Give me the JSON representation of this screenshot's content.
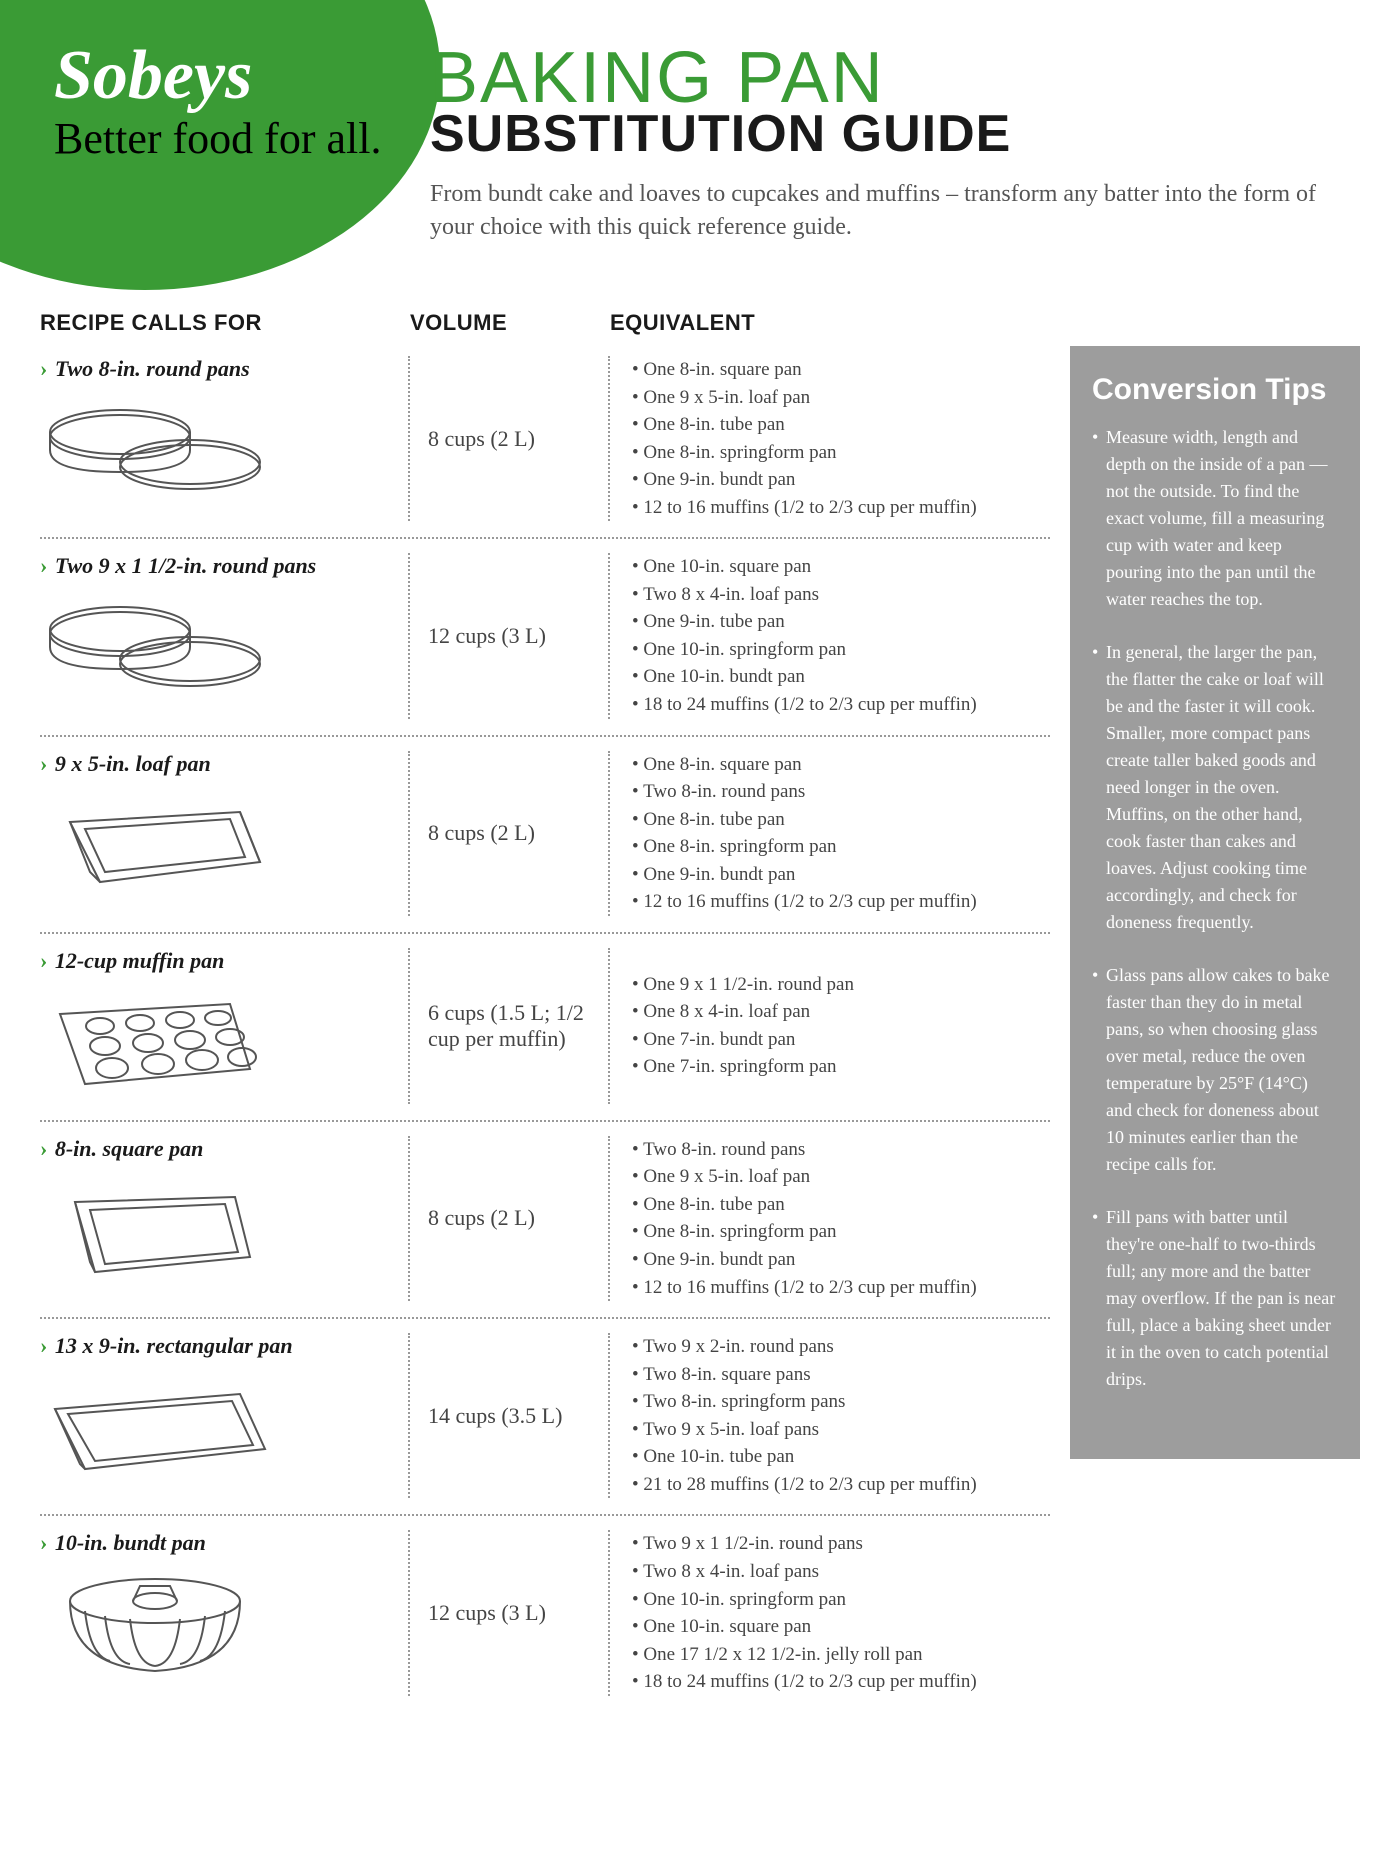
{
  "colors": {
    "brand_green": "#3a9b35",
    "sidebar_gray": "#9d9d9d",
    "text_body": "#444444",
    "text_heading": "#1a1a1a",
    "white": "#ffffff"
  },
  "brand": {
    "logo_text": "Sobeys",
    "tagline": "Better food for all."
  },
  "header": {
    "title_line1": "BAKING PAN",
    "title_line2": "SUBSTITUTION GUIDE",
    "intro": "From bundt cake and loaves to cupcakes and muffins – transform any batter into the form of your choice with this quick reference guide."
  },
  "columns": {
    "c1": "RECIPE CALLS FOR",
    "c2": "VOLUME",
    "c3": "EQUIVALENT"
  },
  "rows": [
    {
      "name": "Two 8-in. round pans",
      "icon": "round-pans",
      "volume": "8 cups (2 L)",
      "equivalents": [
        "One 8-in. square pan",
        "One 9 x 5-in. loaf pan",
        "One 8-in. tube pan",
        "One 8-in. springform pan",
        "One 9-in. bundt pan",
        "12 to 16 muffins (1/2 to 2/3 cup per muffin)"
      ]
    },
    {
      "name": "Two 9 x 1 1/2-in. round pans",
      "icon": "round-pans",
      "volume": "12 cups (3 L)",
      "equivalents": [
        "One 10-in. square pan",
        "Two 8 x 4-in. loaf pans",
        "One 9-in. tube pan",
        "One 10-in. springform pan",
        "One 10-in. bundt pan",
        "18 to 24 muffins (1/2 to 2/3 cup per muffin)"
      ]
    },
    {
      "name": "9 x 5-in. loaf pan",
      "icon": "loaf-pan",
      "volume": "8 cups (2 L)",
      "equivalents": [
        "One 8-in. square pan",
        "Two 8-in. round pans",
        "One 8-in. tube pan",
        "One 8-in. springform pan",
        "One 9-in. bundt pan",
        "12 to 16 muffins (1/2 to 2/3 cup per muffin)"
      ]
    },
    {
      "name": "12-cup muffin pan",
      "icon": "muffin-pan",
      "volume": "6 cups (1.5 L; 1/2 cup per muffin)",
      "equivalents": [
        "One 9 x 1 1/2-in. round pan",
        "One 8 x 4-in. loaf pan",
        "One 7-in. bundt pan",
        "One 7-in. springform pan"
      ]
    },
    {
      "name": "8-in. square pan",
      "icon": "square-pan",
      "volume": "8 cups (2 L)",
      "equivalents": [
        "Two 8-in. round pans",
        "One 9 x 5-in. loaf pan",
        "One 8-in. tube pan",
        "One 8-in. springform pan",
        "One 9-in. bundt pan",
        "12 to 16 muffins (1/2 to 2/3 cup per muffin)"
      ]
    },
    {
      "name": "13 x 9-in. rectangular pan",
      "icon": "rect-pan",
      "volume": "14 cups (3.5 L)",
      "equivalents": [
        "Two 9 x 2-in. round pans",
        "Two 8-in. square pans",
        "Two 8-in. springform pans",
        "Two 9 x 5-in. loaf pans",
        "One 10-in. tube pan",
        "21 to 28 muffins (1/2 to 2/3 cup per muffin)"
      ]
    },
    {
      "name": "10-in. bundt pan",
      "icon": "bundt-pan",
      "volume": "12 cups (3 L)",
      "equivalents": [
        "Two 9 x 1 1/2-in. round pans",
        "Two 8 x 4-in. loaf pans",
        "One 10-in. springform pan",
        "One 10-in. square pan",
        "One 17 1/2 x 12 1/2-in. jelly roll pan",
        "18 to 24 muffins (1/2 to 2/3 cup per muffin)"
      ]
    }
  ],
  "sidebar": {
    "title": "Conversion Tips",
    "tips": [
      "Measure width, length and depth on the inside of a pan — not the outside. To find the exact volume, fill a measuring cup with water and keep pouring into the pan until the water reaches the top.",
      "In general, the larger the pan, the flatter the cake or loaf will be and the faster it will cook. Smaller, more compact pans create taller baked goods and need longer in the oven. Muffins, on the other hand, cook faster than cakes and loaves. Adjust cooking time accordingly, and check for doneness frequently.",
      "Glass pans allow cakes to bake faster than they do in metal pans, so when choosing glass over metal, reduce the oven temperature by 25°F (14°C) and check for doneness about 10 minutes earlier than the recipe calls for.",
      "Fill pans with batter until they're one-half to two-thirds full; any more and the batter may overflow. If the pan is near full, place a baking sheet under it in the oven to catch potential drips."
    ]
  }
}
